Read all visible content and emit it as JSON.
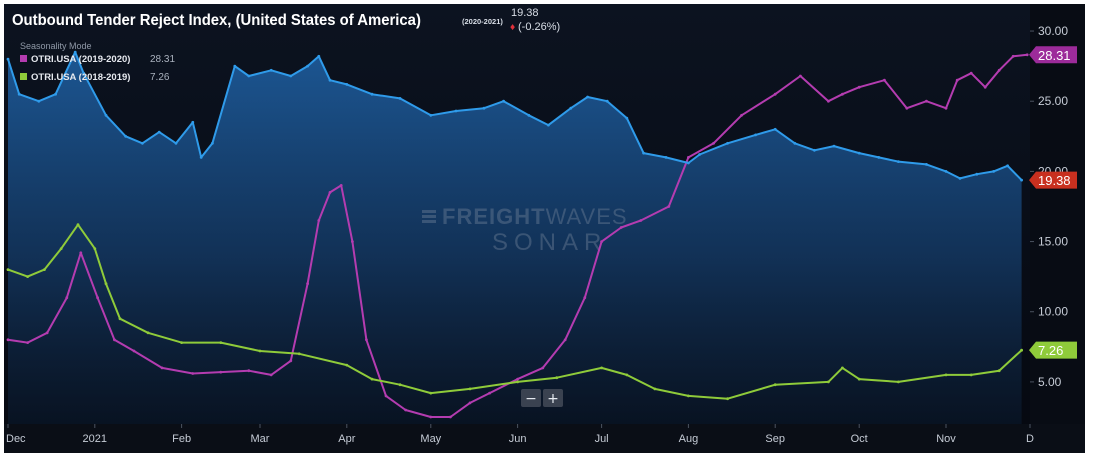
{
  "chart_data": {
    "type": "line",
    "title": "Outbound Tender Reject Index, (United States of America)",
    "title_suffix": "(2020-2021)",
    "current_value": "19.38",
    "change": "(-0.26%)",
    "change_color": "#e0303a",
    "legend_title": "Seasonality Mode",
    "watermark": {
      "brand": "FREIGHT",
      "brand_light": "WAVES",
      "sub": "SONAR"
    },
    "zoom_controls": {
      "minus": "−",
      "plus": "+"
    },
    "x_tick_labels": [
      "Dec",
      "2021",
      "Feb",
      "Mar",
      "Apr",
      "May",
      "Jun",
      "Jul",
      "Aug",
      "Sep",
      "Oct",
      "Nov",
      "D"
    ],
    "x_tick_dates": [
      "2020-12-01",
      "2021-01-01",
      "2021-02-01",
      "2021-03-01",
      "2021-04-01",
      "2021-05-01",
      "2021-06-01",
      "2021-07-01",
      "2021-08-01",
      "2021-09-01",
      "2021-10-01",
      "2021-11-01",
      "2021-12-01"
    ],
    "y_tick_labels": [
      "5.00",
      "10.00",
      "15.00",
      "20.00",
      "25.00",
      "30.00"
    ],
    "y_ticks": [
      5,
      10,
      15,
      20,
      25,
      30
    ],
    "ylim": [
      2.0,
      31.5
    ],
    "xlim": [
      "2020-12-01",
      "2021-12-01"
    ],
    "grid": false,
    "legend_position": "top-left",
    "series": [
      {
        "name": "OTRI.USA (2020-2021)",
        "last_value": "19.38",
        "color": "#2f9bea",
        "tag_color": "#c8301f",
        "area": true,
        "x": [
          "2020-12-01",
          "2020-12-05",
          "2020-12-12",
          "2020-12-18",
          "2020-12-25",
          "2020-12-28",
          "2021-01-05",
          "2021-01-12",
          "2021-01-18",
          "2021-01-24",
          "2021-01-30",
          "2021-02-05",
          "2021-02-08",
          "2021-02-12",
          "2021-02-20",
          "2021-02-25",
          "2021-03-05",
          "2021-03-12",
          "2021-03-18",
          "2021-03-22",
          "2021-03-26",
          "2021-04-01",
          "2021-04-10",
          "2021-04-20",
          "2021-05-01",
          "2021-05-10",
          "2021-05-20",
          "2021-05-27",
          "2021-06-05",
          "2021-06-12",
          "2021-06-20",
          "2021-06-26",
          "2021-07-03",
          "2021-07-10",
          "2021-07-16",
          "2021-07-24",
          "2021-08-01",
          "2021-08-05",
          "2021-08-15",
          "2021-08-25",
          "2021-09-01",
          "2021-09-08",
          "2021-09-15",
          "2021-09-22",
          "2021-10-01",
          "2021-10-08",
          "2021-10-15",
          "2021-10-25",
          "2021-11-01",
          "2021-11-06",
          "2021-11-12",
          "2021-11-18",
          "2021-11-23",
          "2021-11-28"
        ],
        "y": [
          28.0,
          25.5,
          25.0,
          25.5,
          28.5,
          27.0,
          24.0,
          22.5,
          22.0,
          22.8,
          22.0,
          23.5,
          21.0,
          22.0,
          27.5,
          26.8,
          27.2,
          26.8,
          27.5,
          28.2,
          26.5,
          26.2,
          25.5,
          25.2,
          24.0,
          24.3,
          24.5,
          25.0,
          24.0,
          23.3,
          24.5,
          25.3,
          25.0,
          23.8,
          21.3,
          21.0,
          20.6,
          21.2,
          22.0,
          22.6,
          23.0,
          22.0,
          21.5,
          21.8,
          21.3,
          21.0,
          20.7,
          20.5,
          20.0,
          19.5,
          19.8,
          20.0,
          20.4,
          19.38
        ]
      },
      {
        "name": "OTRI.USA (2019-2020)",
        "last_value": "28.31",
        "color": "#b43cb0",
        "tag_color": "#9c2b9a",
        "x": [
          "2020-12-01",
          "2020-12-08",
          "2020-12-15",
          "2020-12-22",
          "2020-12-27",
          "2021-01-02",
          "2021-01-08",
          "2021-01-15",
          "2021-01-25",
          "2021-02-05",
          "2021-02-15",
          "2021-02-25",
          "2021-03-05",
          "2021-03-12",
          "2021-03-18",
          "2021-03-22",
          "2021-03-26",
          "2021-03-30",
          "2021-04-03",
          "2021-04-08",
          "2021-04-15",
          "2021-04-22",
          "2021-05-01",
          "2021-05-08",
          "2021-05-15",
          "2021-05-22",
          "2021-06-01",
          "2021-06-10",
          "2021-06-18",
          "2021-06-25",
          "2021-07-01",
          "2021-07-08",
          "2021-07-15",
          "2021-07-25",
          "2021-08-01",
          "2021-08-10",
          "2021-08-20",
          "2021-09-01",
          "2021-09-10",
          "2021-09-20",
          "2021-09-25",
          "2021-10-01",
          "2021-10-10",
          "2021-10-18",
          "2021-10-25",
          "2021-11-01",
          "2021-11-05",
          "2021-11-10",
          "2021-11-15",
          "2021-11-20",
          "2021-11-25",
          "2021-11-30"
        ],
        "y": [
          8.0,
          7.8,
          8.5,
          11.0,
          14.2,
          11.0,
          8.0,
          7.2,
          6.0,
          5.6,
          5.7,
          5.8,
          5.5,
          6.5,
          12.0,
          16.5,
          18.5,
          19.0,
          15.0,
          8.0,
          4.0,
          3.0,
          2.5,
          2.5,
          3.5,
          4.2,
          5.2,
          6.0,
          8.0,
          11.0,
          15.0,
          16.0,
          16.5,
          17.5,
          21.0,
          22.0,
          24.0,
          25.5,
          26.8,
          25.0,
          25.5,
          26.0,
          26.5,
          24.5,
          25.0,
          24.5,
          26.5,
          27.0,
          26.0,
          27.2,
          28.2,
          28.31
        ]
      },
      {
        "name": "OTRI.USA (2018-2019)",
        "last_value": "7.26",
        "color": "#8fcb3a",
        "tag_color": "#8fcb3a",
        "x": [
          "2020-12-01",
          "2020-12-08",
          "2020-12-14",
          "2020-12-20",
          "2020-12-26",
          "2021-01-01",
          "2021-01-05",
          "2021-01-10",
          "2021-01-20",
          "2021-02-01",
          "2021-02-15",
          "2021-03-01",
          "2021-03-15",
          "2021-04-01",
          "2021-04-10",
          "2021-04-20",
          "2021-05-01",
          "2021-05-15",
          "2021-06-01",
          "2021-06-15",
          "2021-07-01",
          "2021-07-10",
          "2021-07-20",
          "2021-08-01",
          "2021-08-15",
          "2021-09-01",
          "2021-09-20",
          "2021-09-25",
          "2021-10-01",
          "2021-10-15",
          "2021-11-01",
          "2021-11-10",
          "2021-11-20",
          "2021-11-28"
        ],
        "y": [
          13.0,
          12.5,
          13.0,
          14.5,
          16.2,
          14.5,
          12.0,
          9.5,
          8.5,
          7.8,
          7.8,
          7.2,
          7.0,
          6.2,
          5.2,
          4.8,
          4.2,
          4.5,
          5.0,
          5.3,
          6.0,
          5.5,
          4.5,
          4.0,
          3.8,
          4.8,
          5.0,
          6.0,
          5.2,
          5.0,
          5.5,
          5.5,
          5.8,
          7.26
        ]
      }
    ]
  }
}
